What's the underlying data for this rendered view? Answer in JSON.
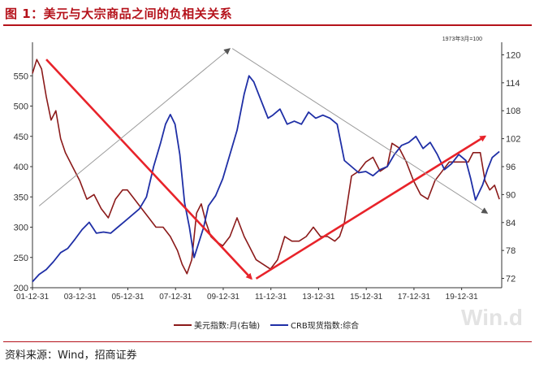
{
  "title": "图 1：美元与大宗商品之间的负相关关系",
  "source": "资料来源：Wind，招商证券",
  "watermark": "Win.d",
  "colors": {
    "title": "#b5121b",
    "usd": "#8b1a1a",
    "crb": "#1f2fa6",
    "arrow": "#e8232a",
    "thin_arrow": "#9a9a9a"
  },
  "chart_data": {
    "type": "line",
    "note": "1973年3月=100",
    "x_ticks": [
      "01-12-31",
      "03-12-31",
      "05-12-31",
      "07-12-31",
      "09-12-31",
      "11-12-31",
      "13-12-31",
      "15-12-31",
      "17-12-31",
      "19-12-31"
    ],
    "x_range": [
      2001.92,
      2021.6
    ],
    "left_axis": {
      "min": 200,
      "max": 600,
      "ticks": [
        200,
        250,
        300,
        350,
        400,
        450,
        500,
        550
      ]
    },
    "right_axis": {
      "min": 70,
      "max": 122,
      "ticks": [
        72,
        78,
        84,
        90,
        96,
        102,
        108,
        114,
        120
      ]
    },
    "legend": [
      {
        "name": "美元指数:月(右轴)",
        "color": "#8b1a1a"
      },
      {
        "name": "CRB现货指数:综合",
        "color": "#1f2fa6"
      }
    ],
    "series": [
      {
        "name": "美元指数:月(右轴)",
        "axis": "right",
        "x": [
          2001.92,
          2002.1,
          2002.3,
          2002.5,
          2002.7,
          2002.9,
          2003.1,
          2003.3,
          2003.6,
          2003.9,
          2004.2,
          2004.5,
          2004.8,
          2005.1,
          2005.4,
          2005.7,
          2005.9,
          2006.2,
          2006.5,
          2006.8,
          2007.1,
          2007.4,
          2007.7,
          2008.0,
          2008.2,
          2008.4,
          2008.6,
          2008.8,
          2009.0,
          2009.2,
          2009.4,
          2009.6,
          2009.9,
          2010.2,
          2010.5,
          2010.8,
          2011.0,
          2011.3,
          2011.6,
          2011.9,
          2012.2,
          2012.5,
          2012.8,
          2013.1,
          2013.4,
          2013.7,
          2014.0,
          2014.3,
          2014.6,
          2014.8,
          2015.0,
          2015.3,
          2015.6,
          2015.9,
          2016.2,
          2016.5,
          2016.8,
          2017.0,
          2017.3,
          2017.6,
          2017.9,
          2018.2,
          2018.5,
          2018.8,
          2019.1,
          2019.4,
          2019.7,
          2020.0,
          2020.2,
          2020.4,
          2020.7,
          2020.9,
          2021.1,
          2021.3,
          2021.5
        ],
        "y": [
          116,
          119,
          117,
          111,
          106,
          108,
          102,
          99,
          96,
          93,
          89,
          90,
          87,
          85,
          89,
          91,
          91,
          89,
          87,
          85,
          83,
          83,
          81,
          78,
          75,
          73,
          76,
          86,
          88,
          84,
          81,
          80,
          79,
          81,
          85,
          81,
          79,
          76,
          75,
          74,
          76,
          81,
          80,
          80,
          81,
          83,
          81,
          81,
          80,
          81,
          84,
          94,
          95,
          97,
          98,
          95,
          96,
          101,
          100,
          97,
          93,
          90,
          89,
          93,
          95,
          97,
          97,
          97,
          97,
          99,
          99,
          93,
          91,
          92,
          89
        ]
      },
      {
        "name": "CRB现货指数:综合",
        "axis": "left",
        "x": [
          2001.92,
          2002.2,
          2002.5,
          2002.8,
          2003.1,
          2003.4,
          2003.7,
          2004.0,
          2004.3,
          2004.6,
          2004.9,
          2005.2,
          2005.5,
          2005.8,
          2006.1,
          2006.4,
          2006.7,
          2007.0,
          2007.3,
          2007.5,
          2007.7,
          2007.9,
          2008.1,
          2008.3,
          2008.5,
          2008.7,
          2008.9,
          2009.1,
          2009.3,
          2009.6,
          2009.9,
          2010.2,
          2010.5,
          2010.8,
          2011.0,
          2011.2,
          2011.4,
          2011.6,
          2011.8,
          2012.0,
          2012.3,
          2012.6,
          2012.9,
          2013.2,
          2013.5,
          2013.8,
          2014.1,
          2014.4,
          2014.7,
          2015.0,
          2015.3,
          2015.6,
          2015.9,
          2016.2,
          2016.5,
          2016.8,
          2017.1,
          2017.4,
          2017.7,
          2018.0,
          2018.3,
          2018.6,
          2018.9,
          2019.2,
          2019.5,
          2019.8,
          2020.1,
          2020.3,
          2020.5,
          2020.8,
          2021.0,
          2021.2,
          2021.5
        ],
        "y": [
          210,
          222,
          230,
          243,
          258,
          265,
          280,
          296,
          308,
          290,
          292,
          290,
          300,
          310,
          320,
          330,
          350,
          400,
          440,
          470,
          486,
          470,
          420,
          340,
          300,
          250,
          275,
          300,
          335,
          352,
          380,
          420,
          460,
          520,
          550,
          540,
          520,
          500,
          480,
          485,
          495,
          470,
          475,
          470,
          490,
          480,
          485,
          480,
          470,
          410,
          400,
          390,
          392,
          385,
          395,
          400,
          420,
          435,
          440,
          450,
          430,
          440,
          420,
          395,
          405,
          420,
          410,
          380,
          345,
          370,
          395,
          415,
          425
        ]
      }
    ],
    "arrows": [
      {
        "style": "thick",
        "from": [
          2002.5,
          577
        ],
        "to": [
          2011.1,
          215
        ]
      },
      {
        "style": "thick",
        "from": [
          2011.3,
          215
        ],
        "to": [
          2020.9,
          450
        ]
      },
      {
        "style": "thin",
        "from": [
          2002.2,
          335
        ],
        "to": [
          2010.2,
          595
        ]
      },
      {
        "style": "thin",
        "from": [
          2010.3,
          595
        ],
        "to": [
          2021.0,
          323
        ]
      }
    ]
  }
}
